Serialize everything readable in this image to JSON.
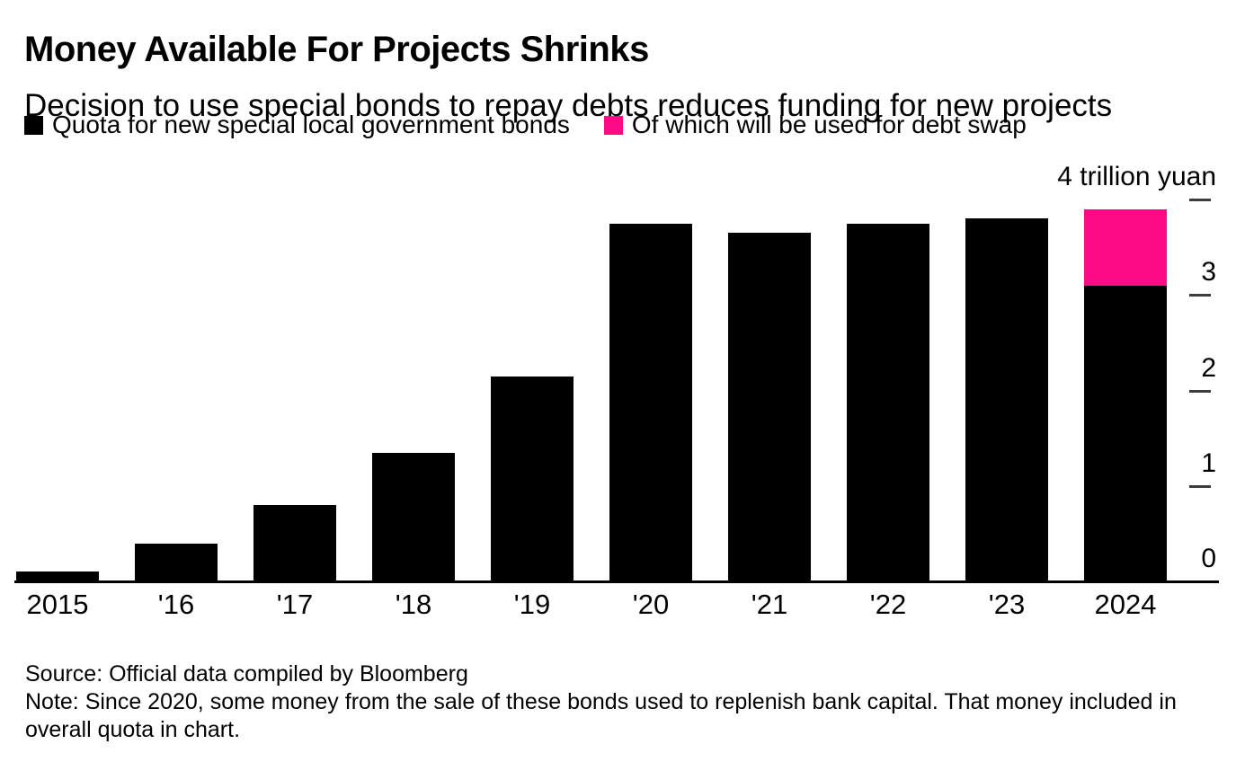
{
  "header": {
    "title": "Money Available For Projects Shrinks",
    "subtitle": "Decision to use special bonds to repay debts reduces funding for new projects"
  },
  "chart_data": {
    "type": "bar",
    "stacked": true,
    "title": "Money Available For Projects Shrinks",
    "subtitle": "Decision to use special bonds to repay debts reduces funding for new projects",
    "unit": "trillion yuan",
    "categories": [
      "2015",
      "'16",
      "'17",
      "'18",
      "'19",
      "'20",
      "'21",
      "'22",
      "'23",
      "2024"
    ],
    "series": [
      {
        "name": "Quota for new special local government bonds",
        "color": "#000000",
        "values": [
          0.1,
          0.4,
          0.8,
          1.35,
          2.15,
          3.75,
          3.65,
          3.75,
          3.8,
          3.9
        ]
      },
      {
        "name": "Of which will be used for debt swap",
        "color": "#ff0a85",
        "values": [
          0,
          0,
          0,
          0,
          0,
          0,
          0,
          0,
          0,
          0.8
        ]
      }
    ],
    "series_relation": "second series is a portion of the first and is drawn as the top segment of the stacked 2024 bar",
    "ylim": [
      0,
      4
    ],
    "yticks": [
      {
        "value": 4,
        "label": "4 trillion yuan"
      },
      {
        "value": 3,
        "label": "3"
      },
      {
        "value": 2,
        "label": "2"
      },
      {
        "value": 1,
        "label": "1"
      },
      {
        "value": 0,
        "label": "0"
      }
    ],
    "legend_position": "top-left",
    "axis_side": "right",
    "grid": false
  },
  "footer": {
    "source": "Source: Official data compiled by Bloomberg",
    "note": "Note: Since 2020, some money from the sale of these bonds used to replenish bank capital. That money included in overall quota in chart."
  }
}
